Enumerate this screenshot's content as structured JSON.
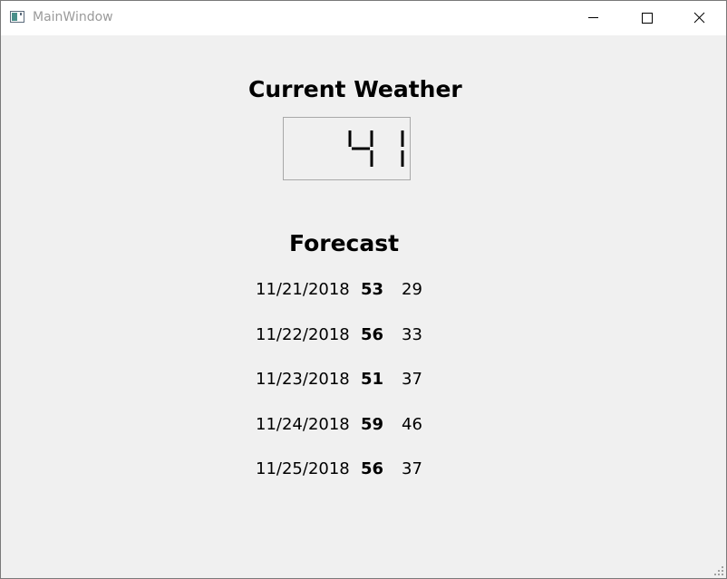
{
  "window": {
    "title": "MainWindow"
  },
  "current": {
    "title": "Current Weather",
    "temperature": "41"
  },
  "forecast": {
    "title": "Forecast",
    "days": [
      {
        "date": "11/21/2018",
        "high": "53",
        "low": "29"
      },
      {
        "date": "11/22/2018",
        "high": "56",
        "low": "33"
      },
      {
        "date": "11/23/2018",
        "high": "51",
        "low": "37"
      },
      {
        "date": "11/24/2018",
        "high": "59",
        "low": "46"
      },
      {
        "date": "11/25/2018",
        "high": "56",
        "low": "37"
      }
    ]
  }
}
